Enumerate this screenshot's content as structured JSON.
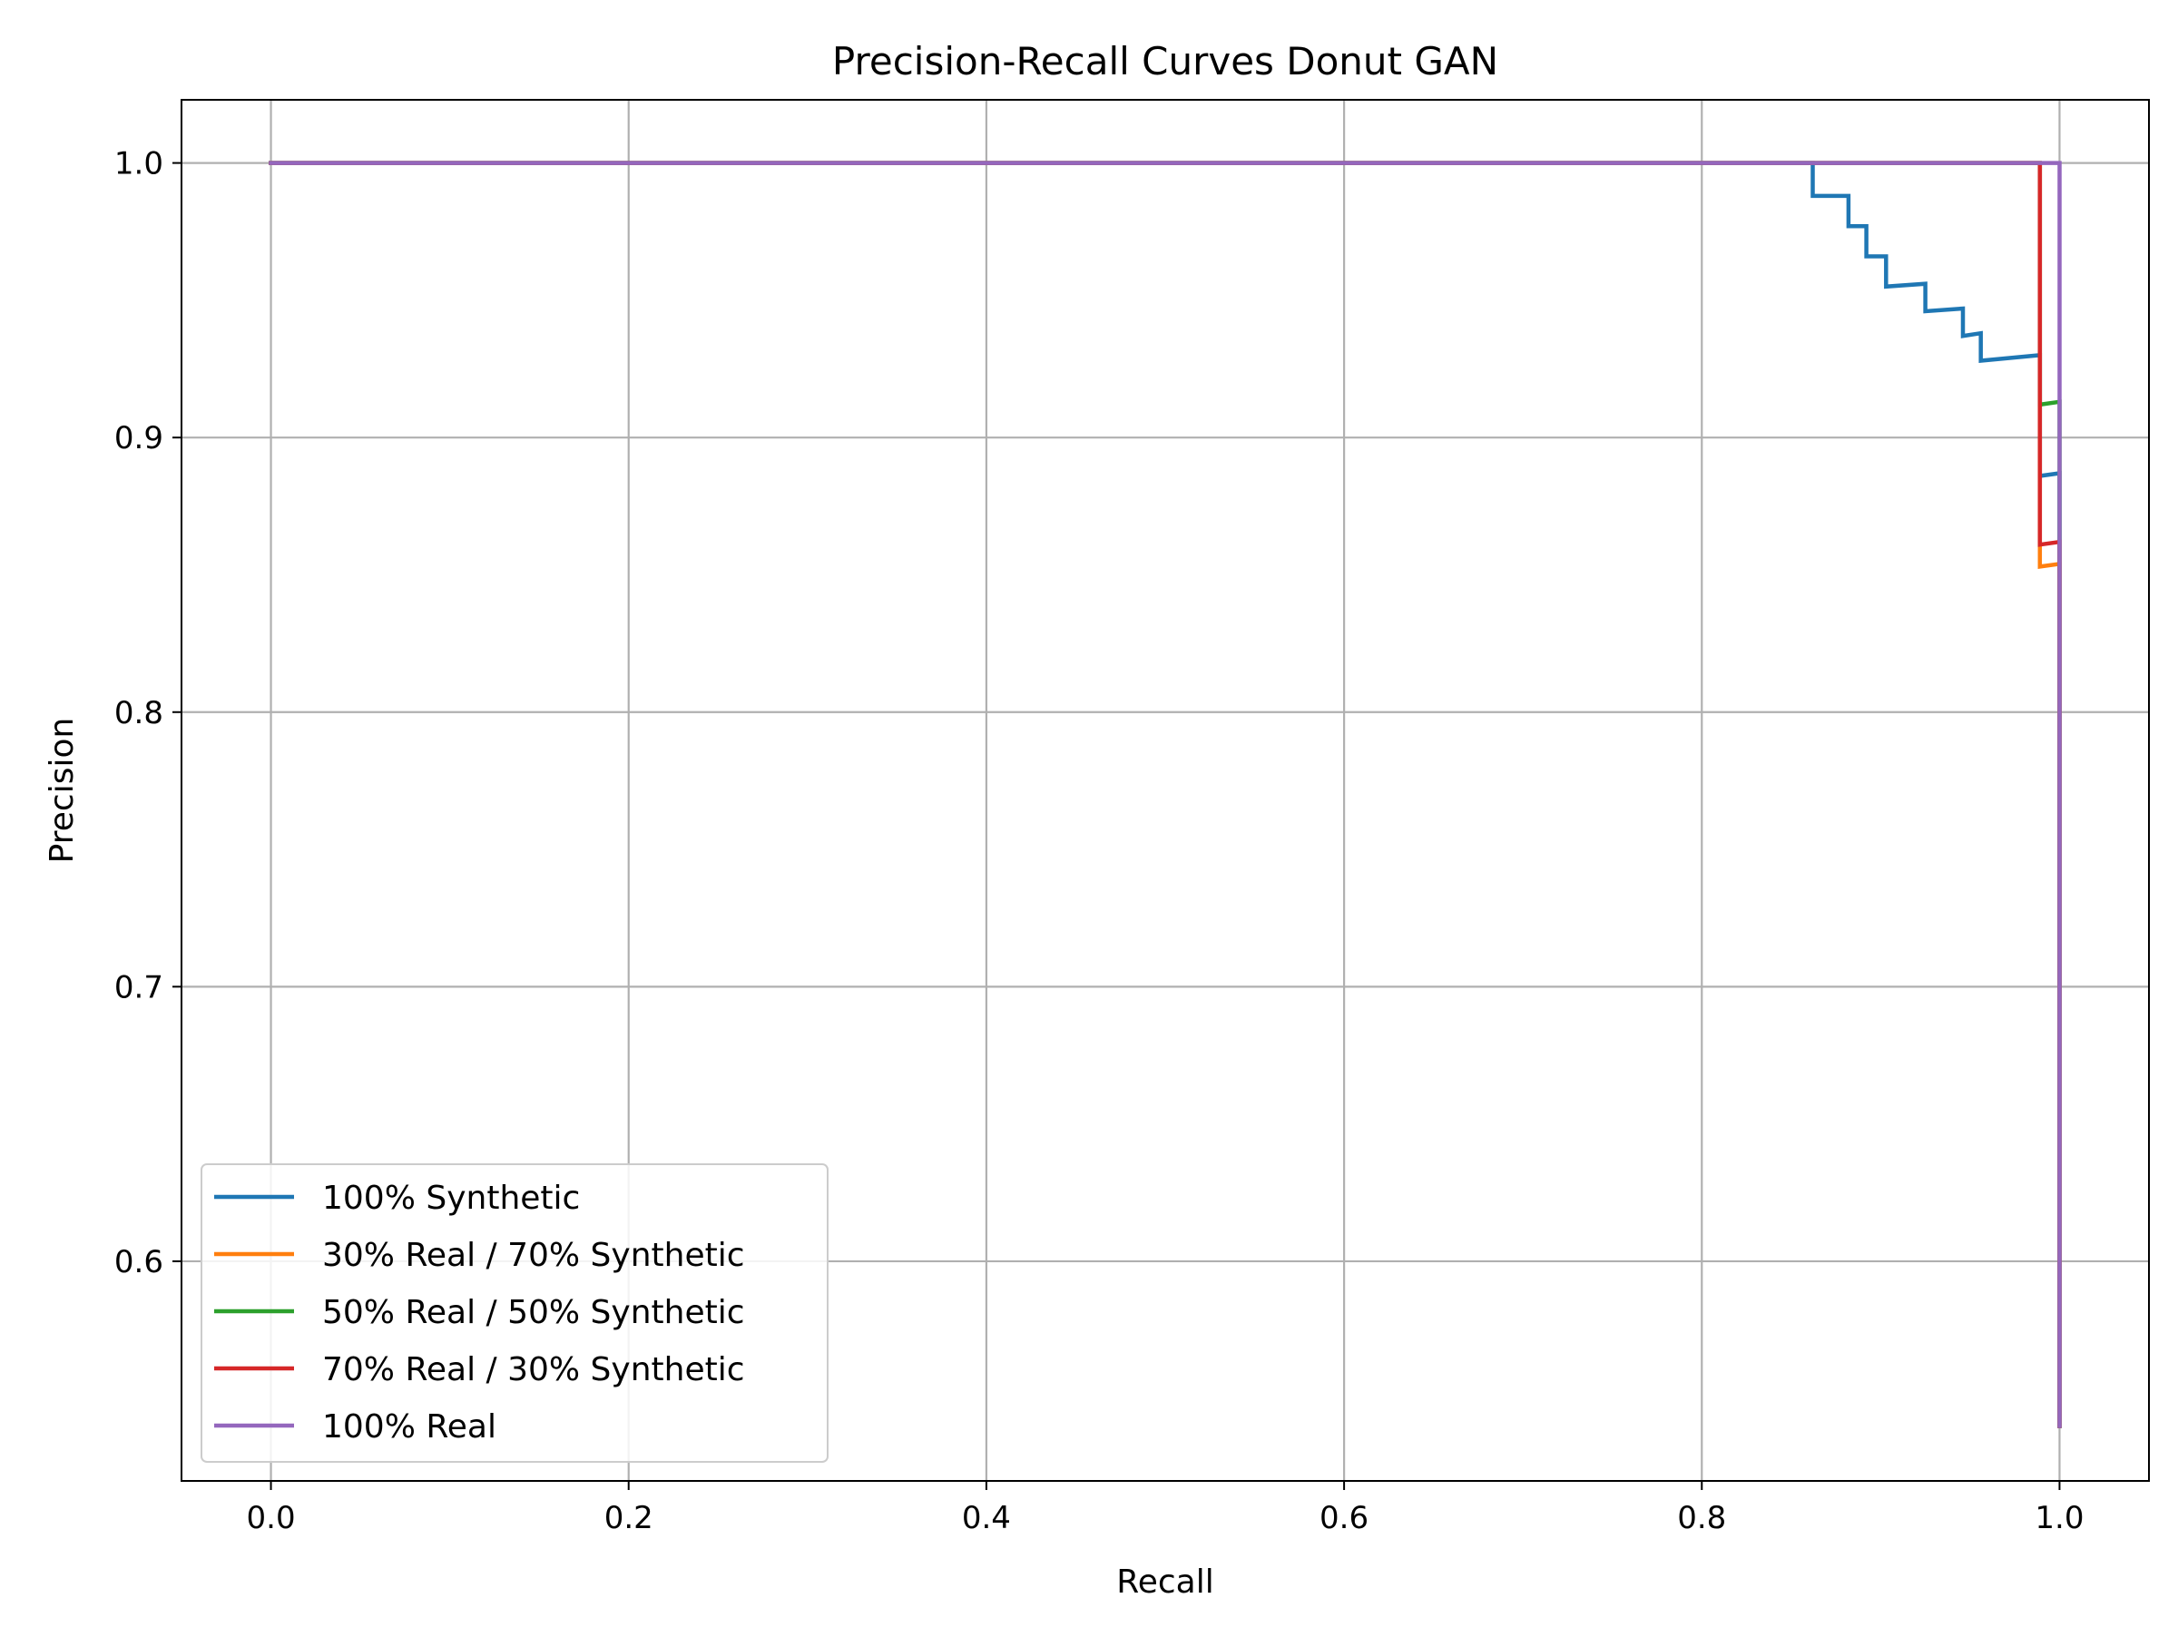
{
  "chart_data": {
    "type": "line",
    "title": "Precision-Recall Curves Donut GAN",
    "xlabel": "Recall",
    "ylabel": "Precision",
    "xlim": [
      -0.05,
      1.05
    ],
    "ylim": [
      0.52,
      1.023
    ],
    "xticks": [
      "0.0",
      "0.2",
      "0.4",
      "0.6",
      "0.8",
      "1.0"
    ],
    "yticks": [
      "0.6",
      "0.7",
      "0.8",
      "0.9",
      "1.0"
    ],
    "grid": true,
    "legend_position": "lower-left",
    "series": [
      {
        "name": "100% Synthetic",
        "color": "#1f77b4",
        "points": [
          [
            0.0,
            1.0
          ],
          [
            0.862,
            1.0
          ],
          [
            0.862,
            0.988
          ],
          [
            0.882,
            0.988
          ],
          [
            0.882,
            0.977
          ],
          [
            0.892,
            0.977
          ],
          [
            0.892,
            0.966
          ],
          [
            0.903,
            0.966
          ],
          [
            0.903,
            0.955
          ],
          [
            0.925,
            0.956
          ],
          [
            0.925,
            0.946
          ],
          [
            0.946,
            0.947
          ],
          [
            0.946,
            0.937
          ],
          [
            0.956,
            0.938
          ],
          [
            0.956,
            0.928
          ],
          [
            0.989,
            0.93
          ],
          [
            0.989,
            0.886
          ],
          [
            1.0,
            0.887
          ],
          [
            1.0,
            0.54
          ]
        ]
      },
      {
        "name": "30% Real / 70% Synthetic",
        "color": "#ff7f0e",
        "points": [
          [
            0.0,
            1.0
          ],
          [
            0.989,
            1.0
          ],
          [
            0.989,
            0.853
          ],
          [
            1.0,
            0.854
          ],
          [
            1.0,
            0.54
          ]
        ]
      },
      {
        "name": "50% Real / 50% Synthetic",
        "color": "#2ca02c",
        "points": [
          [
            0.0,
            1.0
          ],
          [
            0.989,
            1.0
          ],
          [
            0.989,
            0.912
          ],
          [
            1.0,
            0.913
          ],
          [
            1.0,
            0.54
          ]
        ]
      },
      {
        "name": "70% Real / 30% Synthetic",
        "color": "#d62728",
        "points": [
          [
            0.0,
            1.0
          ],
          [
            0.989,
            1.0
          ],
          [
            0.989,
            0.861
          ],
          [
            1.0,
            0.862
          ],
          [
            1.0,
            0.54
          ]
        ]
      },
      {
        "name": "100% Real",
        "color": "#9467bd",
        "points": [
          [
            0.0,
            1.0
          ],
          [
            1.0,
            1.0
          ],
          [
            1.0,
            0.54
          ]
        ]
      }
    ]
  }
}
